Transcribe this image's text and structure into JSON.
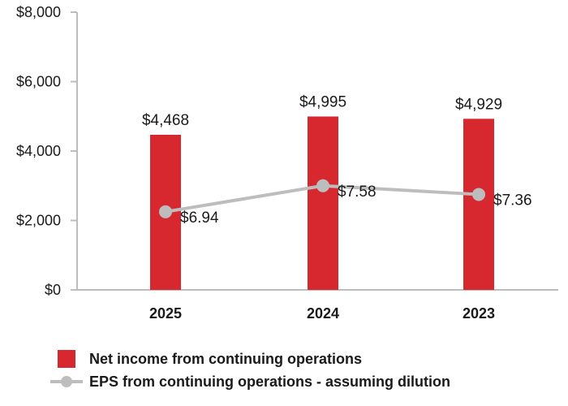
{
  "colors": {
    "bar": "#d7282f",
    "line": "#bdbdbd",
    "axis": "#bdbdbd",
    "text": "#1a1a1a"
  },
  "chart_data": {
    "type": "bar",
    "title": "",
    "xlabel": "",
    "ylabel": "",
    "categories": [
      "2025",
      "2024",
      "2023"
    ],
    "ylim": [
      0,
      8000
    ],
    "yticks": [
      "$0",
      "$2,000",
      "$4,000",
      "$6,000",
      "$8,000"
    ],
    "ytick_values": [
      0,
      2000,
      4000,
      6000,
      8000
    ],
    "series": [
      {
        "name": "Net income from continuing operations",
        "kind": "bar",
        "values": [
          4468,
          4995,
          4929
        ],
        "labels": [
          "$4,468",
          "$4,995",
          "$4,929"
        ]
      },
      {
        "name": "EPS from continuing operations - assuming dilution",
        "kind": "line",
        "values": [
          6.94,
          7.58,
          7.36
        ],
        "labels": [
          "$6.94",
          "$7.58",
          "$7.36"
        ],
        "plotted_on_left_axis_as": [
          2250,
          3000,
          2750
        ]
      }
    ],
    "legend": [
      "Net income from continuing operations",
      "EPS from continuing operations - assuming dilution"
    ],
    "legend_position": "bottom-left",
    "grid": false
  }
}
